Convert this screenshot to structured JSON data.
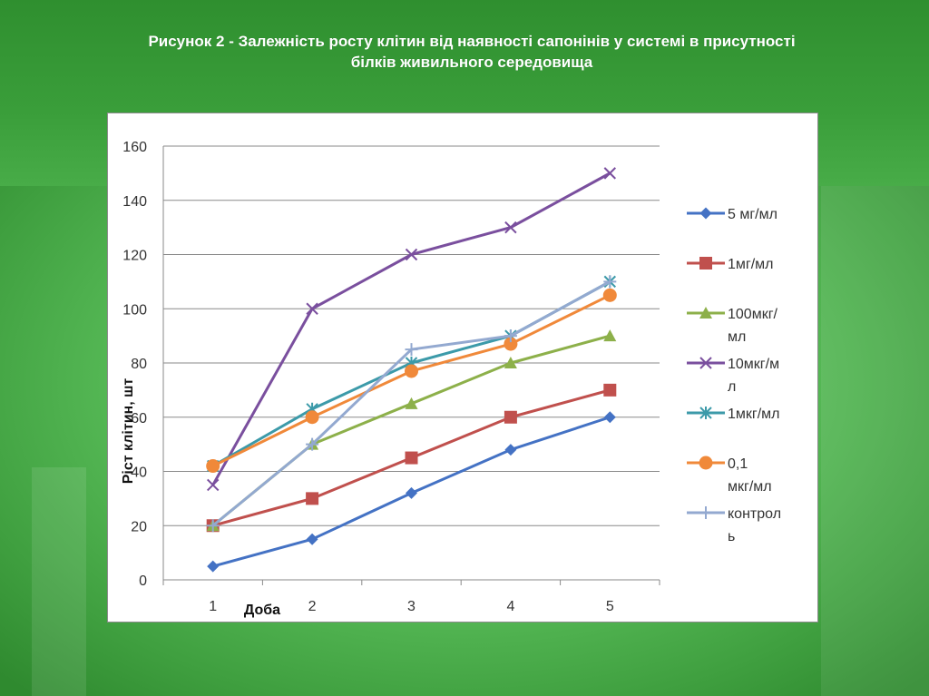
{
  "slide": {
    "title_line1": "Рисунок 2 - Залежність росту клітин від наявності сапонінів у системі в присутності",
    "title_line2": "білків живильного середовища"
  },
  "chart_data": {
    "type": "line",
    "categories": [
      "1",
      "2",
      "3",
      "4",
      "5"
    ],
    "xlabel": "Доба",
    "ylabel": "Ріст клітин, шт",
    "ylim": [
      0,
      160
    ],
    "yticks": [
      0,
      20,
      40,
      60,
      80,
      100,
      120,
      140,
      160
    ],
    "grid": true,
    "legend_position": "right",
    "series": [
      {
        "name": "5 мг/мл",
        "name_lines": [
          "5 мг/мл"
        ],
        "color": "#4472c4",
        "marker": "diamond",
        "values": [
          5,
          15,
          32,
          48,
          60
        ]
      },
      {
        "name": "1мг/мл",
        "name_lines": [
          "1мг/мл"
        ],
        "color": "#c0504d",
        "marker": "square",
        "values": [
          20,
          30,
          45,
          60,
          70
        ]
      },
      {
        "name": "100мкг/мл",
        "name_lines": [
          "100мкг/",
          "мл"
        ],
        "color": "#8db04a",
        "marker": "triangle",
        "values": [
          20,
          50,
          65,
          80,
          90
        ]
      },
      {
        "name": "10мкг/мл",
        "name_lines": [
          "10мкг/м",
          "л"
        ],
        "color": "#7a4f9e",
        "marker": "x",
        "values": [
          35,
          100,
          120,
          130,
          150
        ]
      },
      {
        "name": "1мкг/мл",
        "name_lines": [
          "1мкг/мл"
        ],
        "color": "#3c9aa9",
        "marker": "star",
        "values": [
          42,
          63,
          80,
          90,
          110
        ]
      },
      {
        "name": "0,1 мкг/мл",
        "name_lines": [
          "0,1",
          "мкг/мл"
        ],
        "color": "#f0893a",
        "marker": "circle",
        "values": [
          42,
          60,
          77,
          87,
          105
        ]
      },
      {
        "name": "контроль",
        "name_lines": [
          "контрол",
          "ь"
        ],
        "color": "#93a9d0",
        "marker": "plus",
        "values": [
          20,
          50,
          85,
          90,
          110
        ]
      }
    ]
  }
}
